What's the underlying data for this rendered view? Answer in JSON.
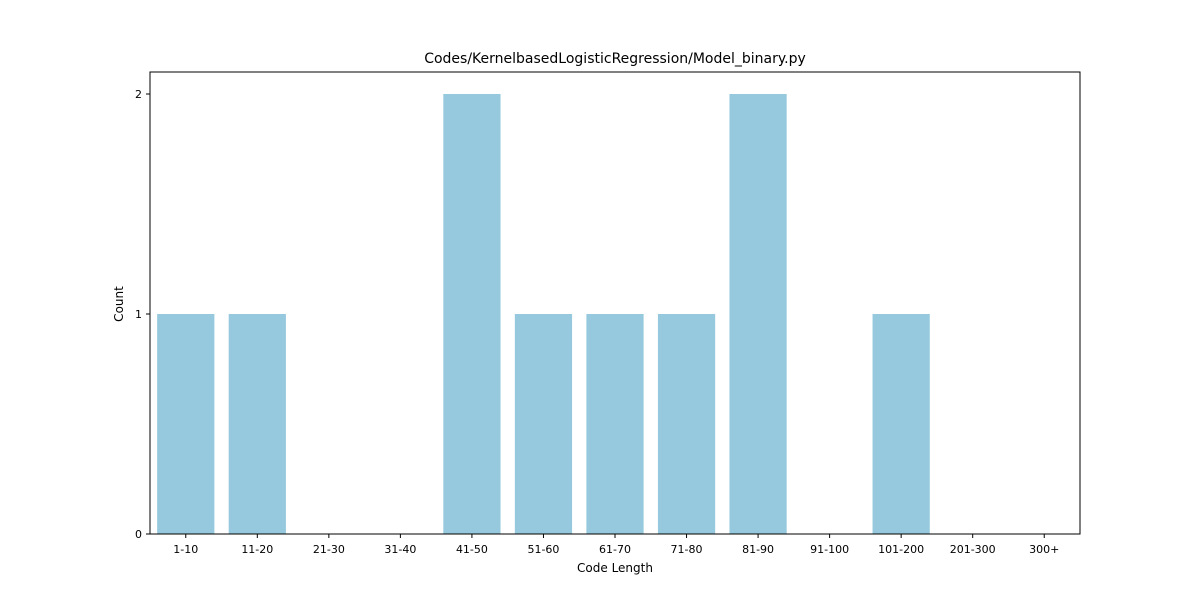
{
  "chart_data": {
    "type": "bar",
    "title": "Codes/KernelbasedLogisticRegression/Model_binary.py",
    "xlabel": "Code Length",
    "ylabel": "Count",
    "categories": [
      "1-10",
      "11-20",
      "21-30",
      "31-40",
      "41-50",
      "51-60",
      "61-70",
      "71-80",
      "81-90",
      "91-100",
      "101-200",
      "201-300",
      "300+"
    ],
    "values": [
      1,
      1,
      0,
      0,
      2,
      1,
      1,
      1,
      2,
      0,
      1,
      0,
      0
    ],
    "yticks": [
      0,
      1,
      2
    ],
    "ylim": [
      0,
      2.1
    ],
    "grid": false,
    "bar_color": "#96c9dd"
  }
}
